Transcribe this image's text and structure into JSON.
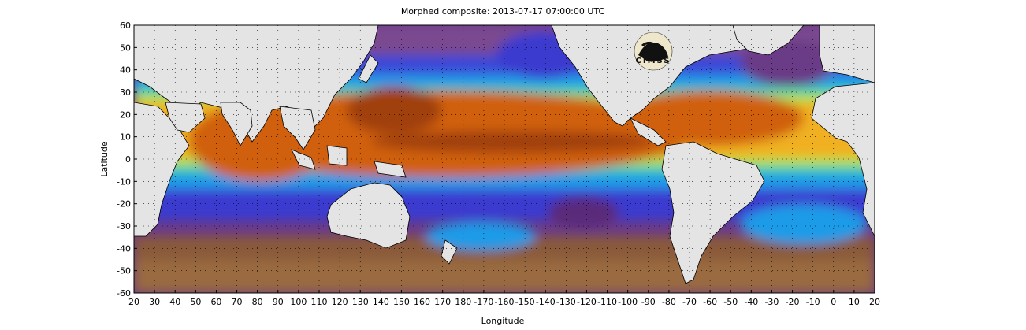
{
  "title": "Morphed composite: 2013-07-17 07:00:00 UTC",
  "x_axis": {
    "label": "Longitude",
    "ticks": [
      "20",
      "30",
      "40",
      "50",
      "60",
      "70",
      "80",
      "90",
      "100",
      "110",
      "120",
      "130",
      "140",
      "150",
      "160",
      "170",
      "180",
      "-170",
      "-160",
      "-150",
      "-140",
      "-130",
      "-120",
      "-110",
      "-100",
      "-90",
      "-80",
      "-70",
      "-60",
      "-50",
      "-40",
      "-30",
      "-20",
      "-10",
      "0",
      "10",
      "20"
    ]
  },
  "y_axis": {
    "label": "Latitude",
    "ticks": [
      "60",
      "50",
      "40",
      "30",
      "20",
      "10",
      "0",
      "-10",
      "-20",
      "-30",
      "-40",
      "-50",
      "-60"
    ]
  },
  "map": {
    "projection": "equirectangular",
    "lon_range": [
      20,
      380
    ],
    "lat_range": [
      -60,
      60
    ],
    "grid": "dotted",
    "land_color": "#e4e4e4",
    "colors": {
      "dry": "#5a2a7a",
      "dry_brown": "#8a5a3a",
      "low": "#3a3ad0",
      "mid_low": "#1e9be8",
      "mid": "#40d0b0",
      "mid_high": "#b8e040",
      "high": "#f0b020",
      "very_high": "#d06010",
      "max": "#a04008"
    }
  },
  "logo": {
    "text": "CIMSS"
  }
}
